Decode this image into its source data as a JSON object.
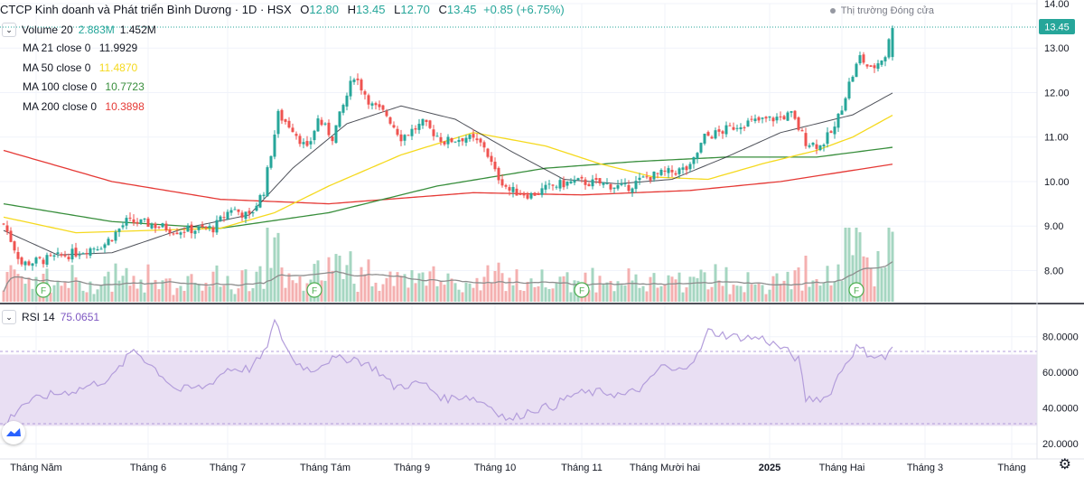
{
  "header": {
    "symbol_title": "CTCP Kinh doanh và Phát triển Bình Dương · 1D · HSX",
    "open_label": "O",
    "open": "12.80",
    "high_label": "H",
    "high": "13.45",
    "low_label": "L",
    "low": "12.70",
    "close_label": "C",
    "close": "13.45",
    "change": "+0.85 (+6.75%)",
    "market_status": "Thị trường Đóng cửa"
  },
  "volume_legend": {
    "label": "Volume 20",
    "value1": "2.883M",
    "value2": "1.452M"
  },
  "ma_legend": [
    {
      "label": "MA 21 close 0",
      "value": "11.9929",
      "color": "#131722"
    },
    {
      "label": "MA 50 close 0",
      "value": "11.4870",
      "color": "#f5d91e"
    },
    {
      "label": "MA 100 close 0",
      "value": "10.7723",
      "color": "#388e3c"
    },
    {
      "label": "MA 200 close 0",
      "value": "10.3898",
      "color": "#e53935"
    }
  ],
  "rsi_legend": {
    "label": "RSI 14",
    "value": "75.0651",
    "color": "#7e57c2"
  },
  "price_axis": {
    "ticks": [
      "14.00",
      "13.00",
      "12.00",
      "11.00",
      "10.00",
      "9.00",
      "8.00"
    ],
    "last_price": "13.45"
  },
  "rsi_axis": {
    "ticks": [
      "80.0000",
      "60.0000",
      "40.0000",
      "20.0000"
    ]
  },
  "time_axis": {
    "labels": [
      "Tháng Năm",
      "Tháng 6",
      "Tháng 7",
      "Tháng Tám",
      "Tháng 9",
      "Tháng 10",
      "Tháng 11",
      "Tháng Mười hai",
      "2025",
      "Tháng Hai",
      "Tháng 3",
      "Tháng"
    ]
  },
  "markers": [
    "F",
    "F",
    "F",
    "F"
  ],
  "colors": {
    "up": "#26a69a",
    "down": "#ef5350",
    "vol_up": "#a5d6c1",
    "vol_down": "#f4b0b0",
    "rsi_band": "#e9dff3"
  },
  "chart_data": {
    "type": "candlestick",
    "price_ylim": [
      7.4,
      14.0
    ],
    "rsi_ylim": [
      12,
      92
    ],
    "rsi_band": [
      30,
      70
    ],
    "price_path": [
      {
        "t": 0,
        "v": 9.05
      },
      {
        "t": 5,
        "v": 8.15
      },
      {
        "t": 12,
        "v": 8.25
      },
      {
        "t": 20,
        "v": 8.4
      },
      {
        "t": 28,
        "v": 8.6
      },
      {
        "t": 34,
        "v": 9.1
      },
      {
        "t": 40,
        "v": 9.05
      },
      {
        "t": 48,
        "v": 8.9
      },
      {
        "t": 58,
        "v": 8.95
      },
      {
        "t": 63,
        "v": 9.4
      },
      {
        "t": 68,
        "v": 9.2
      },
      {
        "t": 72,
        "v": 9.8
      },
      {
        "t": 76,
        "v": 11.5
      },
      {
        "t": 80,
        "v": 11.2
      },
      {
        "t": 84,
        "v": 10.7
      },
      {
        "t": 87,
        "v": 11.4
      },
      {
        "t": 91,
        "v": 11.0
      },
      {
        "t": 97,
        "v": 12.4
      },
      {
        "t": 102,
        "v": 11.7
      },
      {
        "t": 106,
        "v": 11.5
      },
      {
        "t": 110,
        "v": 11.0
      },
      {
        "t": 116,
        "v": 11.3
      },
      {
        "t": 122,
        "v": 10.9
      },
      {
        "t": 128,
        "v": 11.0
      },
      {
        "t": 133,
        "v": 10.8
      },
      {
        "t": 136,
        "v": 10.2
      },
      {
        "t": 140,
        "v": 9.8
      },
      {
        "t": 146,
        "v": 9.7
      },
      {
        "t": 152,
        "v": 9.9
      },
      {
        "t": 158,
        "v": 10.0
      },
      {
        "t": 166,
        "v": 9.95
      },
      {
        "t": 172,
        "v": 9.85
      },
      {
        "t": 178,
        "v": 10.1
      },
      {
        "t": 184,
        "v": 10.2
      },
      {
        "t": 190,
        "v": 10.3
      },
      {
        "t": 194,
        "v": 11.0
      },
      {
        "t": 198,
        "v": 11.1
      },
      {
        "t": 204,
        "v": 11.3
      },
      {
        "t": 212,
        "v": 11.4
      },
      {
        "t": 218,
        "v": 11.5
      },
      {
        "t": 222,
        "v": 10.9
      },
      {
        "t": 226,
        "v": 10.8
      },
      {
        "t": 230,
        "v": 11.2
      },
      {
        "t": 234,
        "v": 12.2
      },
      {
        "t": 237,
        "v": 12.8
      },
      {
        "t": 240,
        "v": 12.5
      },
      {
        "t": 244,
        "v": 12.85
      },
      {
        "t": 246,
        "v": 13.45
      }
    ],
    "ma21": [
      {
        "t": 0,
        "v": 8.9
      },
      {
        "t": 15,
        "v": 8.35
      },
      {
        "t": 30,
        "v": 8.4
      },
      {
        "t": 50,
        "v": 8.95
      },
      {
        "t": 68,
        "v": 9.25
      },
      {
        "t": 80,
        "v": 10.3
      },
      {
        "t": 95,
        "v": 11.3
      },
      {
        "t": 110,
        "v": 11.7
      },
      {
        "t": 125,
        "v": 11.4
      },
      {
        "t": 140,
        "v": 10.7
      },
      {
        "t": 155,
        "v": 10.05
      },
      {
        "t": 170,
        "v": 9.95
      },
      {
        "t": 185,
        "v": 10.05
      },
      {
        "t": 200,
        "v": 10.55
      },
      {
        "t": 215,
        "v": 11.1
      },
      {
        "t": 225,
        "v": 11.3
      },
      {
        "t": 235,
        "v": 11.5
      },
      {
        "t": 246,
        "v": 11.99
      }
    ],
    "ma50": [
      {
        "t": 0,
        "v": 9.2
      },
      {
        "t": 20,
        "v": 8.85
      },
      {
        "t": 40,
        "v": 8.9
      },
      {
        "t": 60,
        "v": 8.95
      },
      {
        "t": 75,
        "v": 9.3
      },
      {
        "t": 90,
        "v": 9.9
      },
      {
        "t": 110,
        "v": 10.6
      },
      {
        "t": 130,
        "v": 11.1
      },
      {
        "t": 150,
        "v": 10.8
      },
      {
        "t": 165,
        "v": 10.4
      },
      {
        "t": 180,
        "v": 10.1
      },
      {
        "t": 195,
        "v": 10.05
      },
      {
        "t": 210,
        "v": 10.4
      },
      {
        "t": 225,
        "v": 10.7
      },
      {
        "t": 235,
        "v": 11.0
      },
      {
        "t": 246,
        "v": 11.49
      }
    ],
    "ma100": [
      {
        "t": 0,
        "v": 9.5
      },
      {
        "t": 30,
        "v": 9.1
      },
      {
        "t": 60,
        "v": 8.95
      },
      {
        "t": 90,
        "v": 9.3
      },
      {
        "t": 120,
        "v": 9.9
      },
      {
        "t": 150,
        "v": 10.3
      },
      {
        "t": 175,
        "v": 10.45
      },
      {
        "t": 200,
        "v": 10.55
      },
      {
        "t": 225,
        "v": 10.55
      },
      {
        "t": 246,
        "v": 10.77
      }
    ],
    "ma200": [
      {
        "t": 0,
        "v": 10.7
      },
      {
        "t": 30,
        "v": 10.0
      },
      {
        "t": 60,
        "v": 9.6
      },
      {
        "t": 90,
        "v": 9.5
      },
      {
        "t": 130,
        "v": 9.75
      },
      {
        "t": 160,
        "v": 9.7
      },
      {
        "t": 190,
        "v": 9.8
      },
      {
        "t": 215,
        "v": 10.0
      },
      {
        "t": 246,
        "v": 10.39
      }
    ],
    "rsi": [
      {
        "t": 0,
        "v": 30
      },
      {
        "t": 5,
        "v": 42
      },
      {
        "t": 12,
        "v": 47
      },
      {
        "t": 20,
        "v": 50
      },
      {
        "t": 30,
        "v": 57
      },
      {
        "t": 36,
        "v": 73
      },
      {
        "t": 42,
        "v": 62
      },
      {
        "t": 48,
        "v": 50
      },
      {
        "t": 56,
        "v": 52
      },
      {
        "t": 62,
        "v": 62
      },
      {
        "t": 68,
        "v": 62
      },
      {
        "t": 72,
        "v": 70
      },
      {
        "t": 75,
        "v": 88
      },
      {
        "t": 80,
        "v": 67
      },
      {
        "t": 85,
        "v": 61
      },
      {
        "t": 90,
        "v": 67
      },
      {
        "t": 97,
        "v": 68
      },
      {
        "t": 103,
        "v": 62
      },
      {
        "t": 108,
        "v": 52
      },
      {
        "t": 116,
        "v": 54
      },
      {
        "t": 122,
        "v": 45
      },
      {
        "t": 128,
        "v": 47
      },
      {
        "t": 134,
        "v": 42
      },
      {
        "t": 140,
        "v": 33
      },
      {
        "t": 146,
        "v": 39
      },
      {
        "t": 152,
        "v": 41
      },
      {
        "t": 158,
        "v": 48
      },
      {
        "t": 166,
        "v": 49
      },
      {
        "t": 172,
        "v": 47
      },
      {
        "t": 178,
        "v": 53
      },
      {
        "t": 182,
        "v": 64
      },
      {
        "t": 186,
        "v": 60
      },
      {
        "t": 192,
        "v": 69
      },
      {
        "t": 195,
        "v": 83
      },
      {
        "t": 202,
        "v": 80
      },
      {
        "t": 210,
        "v": 79
      },
      {
        "t": 216,
        "v": 73
      },
      {
        "t": 220,
        "v": 67
      },
      {
        "t": 222,
        "v": 45
      },
      {
        "t": 228,
        "v": 46
      },
      {
        "t": 232,
        "v": 62
      },
      {
        "t": 236,
        "v": 74
      },
      {
        "t": 240,
        "v": 70
      },
      {
        "t": 244,
        "v": 68
      },
      {
        "t": 246,
        "v": 75
      }
    ]
  }
}
